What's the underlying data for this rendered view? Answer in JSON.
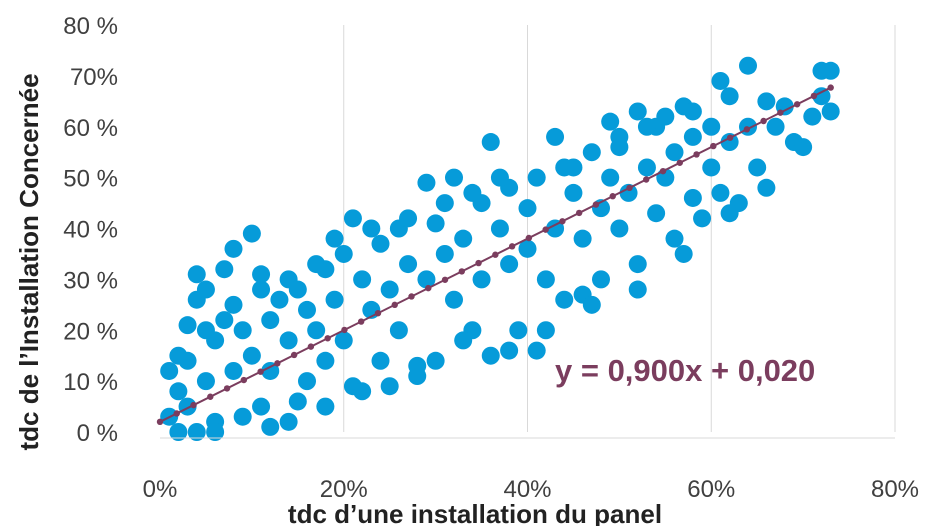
{
  "chart_data": {
    "type": "scatter",
    "xlabel": "tdc d’une installation du panel",
    "ylabel": "tdc de l’Installation Concernée",
    "xlim": [
      0,
      0.8
    ],
    "ylim": [
      0,
      0.8
    ],
    "x_tick_labels": [
      "0%",
      "20%",
      "40%",
      "60%",
      "80%"
    ],
    "y_tick_labels": [
      "0 %",
      "10 %",
      "20 %",
      "30 %",
      "40 %",
      "50 %",
      "60 %",
      "70%",
      "80 %"
    ],
    "grid": "vertical",
    "point_color": "#069BD9",
    "trendline": {
      "label": "y = 0,900x + 0,020",
      "slope": 0.9,
      "intercept": 0.02,
      "x_range": [
        0,
        0.73
      ],
      "color": "#7B3D5E"
    },
    "series": [
      {
        "points": [
          [
            0.01,
            0.12
          ],
          [
            0.01,
            0.03
          ],
          [
            0.02,
            0.08
          ],
          [
            0.02,
            0.15
          ],
          [
            0.03,
            0.21
          ],
          [
            0.03,
            0.05
          ],
          [
            0.04,
            0.31
          ],
          [
            0.04,
            0.26
          ],
          [
            0.05,
            0.28
          ],
          [
            0.05,
            0.1
          ],
          [
            0.06,
            0.18
          ],
          [
            0.06,
            0.02
          ],
          [
            0.07,
            0.32
          ],
          [
            0.07,
            0.22
          ],
          [
            0.08,
            0.36
          ],
          [
            0.08,
            0.12
          ],
          [
            0.09,
            0.2
          ],
          [
            0.1,
            0.39
          ],
          [
            0.1,
            0.15
          ],
          [
            0.11,
            0.28
          ],
          [
            0.11,
            0.05
          ],
          [
            0.12,
            0.22
          ],
          [
            0.12,
            0.12
          ],
          [
            0.13,
            0.26
          ],
          [
            0.14,
            0.02
          ],
          [
            0.14,
            0.18
          ],
          [
            0.15,
            0.28
          ],
          [
            0.16,
            0.1
          ],
          [
            0.16,
            0.24
          ],
          [
            0.17,
            0.2
          ],
          [
            0.18,
            0.32
          ],
          [
            0.18,
            0.14
          ],
          [
            0.19,
            0.26
          ],
          [
            0.2,
            0.35
          ],
          [
            0.2,
            0.18
          ],
          [
            0.21,
            0.42
          ],
          [
            0.21,
            0.09
          ],
          [
            0.22,
            0.3
          ],
          [
            0.23,
            0.24
          ],
          [
            0.24,
            0.37
          ],
          [
            0.24,
            0.14
          ],
          [
            0.25,
            0.28
          ],
          [
            0.26,
            0.4
          ],
          [
            0.26,
            0.2
          ],
          [
            0.27,
            0.33
          ],
          [
            0.28,
            0.11
          ],
          [
            0.29,
            0.49
          ],
          [
            0.29,
            0.3
          ],
          [
            0.3,
            0.41
          ],
          [
            0.3,
            0.14
          ],
          [
            0.31,
            0.35
          ],
          [
            0.32,
            0.5
          ],
          [
            0.32,
            0.26
          ],
          [
            0.33,
            0.38
          ],
          [
            0.34,
            0.2
          ],
          [
            0.35,
            0.45
          ],
          [
            0.35,
            0.3
          ],
          [
            0.36,
            0.57
          ],
          [
            0.36,
            0.15
          ],
          [
            0.37,
            0.4
          ],
          [
            0.38,
            0.48
          ],
          [
            0.38,
            0.33
          ],
          [
            0.39,
            0.2
          ],
          [
            0.4,
            0.44
          ],
          [
            0.4,
            0.36
          ],
          [
            0.41,
            0.5
          ],
          [
            0.41,
            0.16
          ],
          [
            0.42,
            0.3
          ],
          [
            0.43,
            0.58
          ],
          [
            0.43,
            0.4
          ],
          [
            0.44,
            0.26
          ],
          [
            0.45,
            0.47
          ],
          [
            0.45,
            0.52
          ],
          [
            0.46,
            0.27
          ],
          [
            0.46,
            0.38
          ],
          [
            0.47,
            0.55
          ],
          [
            0.48,
            0.44
          ],
          [
            0.48,
            0.3
          ],
          [
            0.49,
            0.61
          ],
          [
            0.49,
            0.5
          ],
          [
            0.5,
            0.4
          ],
          [
            0.5,
            0.56
          ],
          [
            0.51,
            0.47
          ],
          [
            0.52,
            0.33
          ],
          [
            0.52,
            0.63
          ],
          [
            0.53,
            0.52
          ],
          [
            0.54,
            0.43
          ],
          [
            0.54,
            0.6
          ],
          [
            0.55,
            0.5
          ],
          [
            0.56,
            0.38
          ],
          [
            0.56,
            0.55
          ],
          [
            0.57,
            0.64
          ],
          [
            0.58,
            0.46
          ],
          [
            0.58,
            0.58
          ],
          [
            0.59,
            0.42
          ],
          [
            0.6,
            0.6
          ],
          [
            0.6,
            0.52
          ],
          [
            0.61,
            0.69
          ],
          [
            0.61,
            0.47
          ],
          [
            0.62,
            0.66
          ],
          [
            0.62,
            0.57
          ],
          [
            0.63,
            0.45
          ],
          [
            0.64,
            0.72
          ],
          [
            0.64,
            0.6
          ],
          [
            0.65,
            0.52
          ],
          [
            0.66,
            0.65
          ],
          [
            0.67,
            0.6
          ],
          [
            0.68,
            0.64
          ],
          [
            0.69,
            0.57
          ],
          [
            0.7,
            0.56
          ],
          [
            0.71,
            0.62
          ],
          [
            0.72,
            0.71
          ],
          [
            0.72,
            0.66
          ],
          [
            0.73,
            0.71
          ],
          [
            0.73,
            0.63
          ],
          [
            0.02,
            0.0
          ],
          [
            0.04,
            0.0
          ],
          [
            0.06,
            0.0
          ],
          [
            0.09,
            0.03
          ],
          [
            0.12,
            0.01
          ],
          [
            0.15,
            0.06
          ],
          [
            0.18,
            0.05
          ],
          [
            0.22,
            0.08
          ],
          [
            0.25,
            0.09
          ],
          [
            0.28,
            0.13
          ],
          [
            0.33,
            0.18
          ],
          [
            0.38,
            0.16
          ],
          [
            0.42,
            0.2
          ],
          [
            0.47,
            0.25
          ],
          [
            0.52,
            0.28
          ],
          [
            0.57,
            0.35
          ],
          [
            0.62,
            0.43
          ],
          [
            0.66,
            0.48
          ],
          [
            0.03,
            0.14
          ],
          [
            0.05,
            0.2
          ],
          [
            0.08,
            0.25
          ],
          [
            0.11,
            0.31
          ],
          [
            0.14,
            0.3
          ],
          [
            0.17,
            0.33
          ],
          [
            0.19,
            0.38
          ],
          [
            0.23,
            0.4
          ],
          [
            0.27,
            0.42
          ],
          [
            0.31,
            0.45
          ],
          [
            0.34,
            0.47
          ],
          [
            0.37,
            0.5
          ],
          [
            0.44,
            0.52
          ],
          [
            0.5,
            0.58
          ],
          [
            0.53,
            0.6
          ],
          [
            0.55,
            0.62
          ],
          [
            0.58,
            0.63
          ]
        ]
      }
    ]
  }
}
